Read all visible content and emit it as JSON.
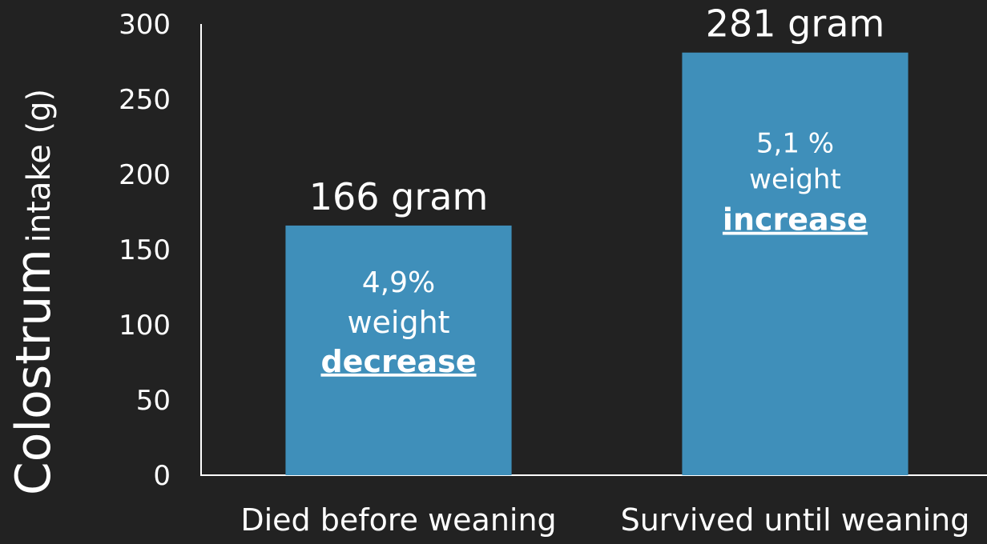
{
  "chart_data": {
    "type": "bar",
    "y_label": [
      "Colostrum",
      "intake (g)"
    ],
    "categories": [
      "Died before weaning",
      "Survived until weaning"
    ],
    "values": [
      166,
      281
    ],
    "value_labels": [
      "166 gram",
      "281 gram"
    ],
    "annotations": [
      [
        "4,9%",
        "weight",
        "decrease"
      ],
      [
        "5,1 %",
        "weight",
        "increase"
      ]
    ],
    "color": "#3f8fba",
    "ylim": [
      0,
      300
    ],
    "yticks": [
      0,
      50,
      100,
      150,
      200,
      250,
      300
    ],
    "grid": false
  }
}
